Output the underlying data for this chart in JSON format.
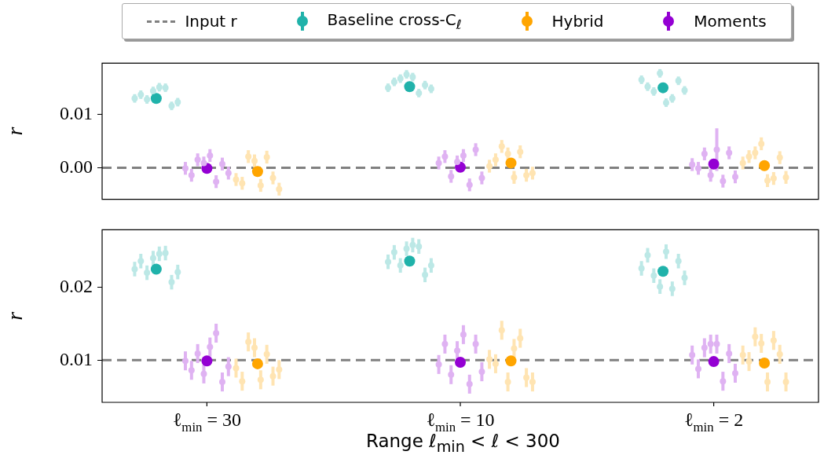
{
  "chart_data": [
    {
      "type": "scatter",
      "ylabel": "r",
      "legend": "top",
      "marker": "circle",
      "categories": [
        null,
        null,
        null
      ],
      "ylim": [
        -0.0059,
        0.0196
      ],
      "yticks": [
        {
          "value": 0,
          "label": "0.00"
        },
        {
          "value": 0.01,
          "label": "0.01"
        }
      ],
      "ref_lines": [
        {
          "axis": "y",
          "value": 0,
          "label": "Input r",
          "color": "#808080",
          "line_style": "dashed"
        }
      ],
      "series": [
        {
          "color": "#bce8e6",
          "values": [
            0.013,
            0.015,
            0.0165
          ],
          "errors": [
            0.0008,
            0.0008,
            0.0008
          ]
        },
        {
          "color": "#bce8e6",
          "values": [
            0.0137,
            0.0161,
            0.0152
          ],
          "errors": [
            0.0008,
            0.0008,
            0.0008
          ]
        },
        {
          "color": "#bce8e6",
          "values": [
            0.0128,
            0.0167,
            0.0143
          ],
          "errors": [
            0.0008,
            0.0008,
            0.0008
          ]
        },
        {
          "color": "#bce8e6",
          "values": [
            0.0144,
            0.0175,
            0.0177
          ],
          "errors": [
            0.0008,
            0.0008,
            0.0008
          ]
        },
        {
          "color": "#bce8e6",
          "values": [
            0.0151,
            0.017,
            0.0122
          ],
          "errors": [
            0.0008,
            0.0008,
            0.0008
          ]
        },
        {
          "color": "#bce8e6",
          "values": [
            0.015,
            0.014,
            0.013
          ],
          "errors": [
            0.0008,
            0.0008,
            0.0008
          ]
        },
        {
          "color": "#bce8e6",
          "values": [
            0.0116,
            0.0155,
            0.0163
          ],
          "errors": [
            0.0008,
            0.0008,
            0.0008
          ]
        },
        {
          "color": "#bce8e6",
          "values": [
            0.0123,
            0.0148,
            0.0145
          ],
          "errors": [
            0.0008,
            0.0008,
            0.0008
          ]
        },
        {
          "color": "#ffe4b2",
          "values": [
            -0.0022,
            0.0003,
            0.0009
          ],
          "errors": [
            0.0012,
            0.0012,
            0.0012
          ]
        },
        {
          "color": "#ffe4b2",
          "values": [
            -0.0029,
            0.0015,
            0.0021
          ],
          "errors": [
            0.0012,
            0.0012,
            0.0012
          ]
        },
        {
          "color": "#ffe4b2",
          "values": [
            0.0021,
            0.004,
            0.0028
          ],
          "errors": [
            0.0012,
            0.0012,
            0.0012
          ]
        },
        {
          "color": "#ffe4b2",
          "values": [
            0.0013,
            0.0026,
            0.0045
          ],
          "errors": [
            0.0012,
            0.0012,
            0.0012
          ]
        },
        {
          "color": "#ffe4b2",
          "values": [
            -0.0033,
            -0.0018,
            -0.0024
          ],
          "errors": [
            0.0012,
            0.0012,
            0.0012
          ]
        },
        {
          "color": "#ffe4b2",
          "values": [
            0.002,
            0.003,
            -0.002
          ],
          "errors": [
            0.0012,
            0.0012,
            0.0012
          ]
        },
        {
          "color": "#ffe4b2",
          "values": [
            -0.0019,
            -0.0014,
            0.0019
          ],
          "errors": [
            0.0012,
            0.0012,
            0.0012
          ]
        },
        {
          "color": "#ffe4b2",
          "values": [
            -0.004,
            -0.001,
            -0.0018
          ],
          "errors": [
            0.0012,
            0.0012,
            0.0012
          ]
        },
        {
          "color": "#dfb2f2",
          "values": [
            -0.0001,
            0.0009,
            0.0006
          ],
          "errors": [
            0.0012,
            0.0012,
            0.0012
          ]
        },
        {
          "color": "#dfb2f2",
          "values": [
            -0.0014,
            0.0021,
            -0.0001
          ],
          "errors": [
            0.0012,
            0.0012,
            0.0012
          ]
        },
        {
          "color": "#dfb2f2",
          "values": [
            0.0015,
            -0.0016,
            0.0026
          ],
          "errors": [
            0.0012,
            0.0012,
            0.0012
          ]
        },
        {
          "color": "#dfb2f2",
          "values": [
            0.0009,
            0.0011,
            -0.0014
          ],
          "errors": [
            0.0012,
            0.0012,
            0.0012
          ]
        },
        {
          "color": "#dfb2f2",
          "values": [
            0.0023,
            0.0023,
            0.0034
          ],
          "errors": [
            0.0012,
            0.0012,
            0.004
          ]
        },
        {
          "color": "#dfb2f2",
          "values": [
            -0.0026,
            -0.0032,
            -0.0025
          ],
          "errors": [
            0.0012,
            0.0012,
            0.0012
          ]
        },
        {
          "color": "#dfb2f2",
          "values": [
            0.0007,
            0.0034,
            0.0028
          ],
          "errors": [
            0.0012,
            0.0012,
            0.0012
          ]
        },
        {
          "color": "#dfb2f2",
          "values": [
            -0.001,
            -0.0019,
            -0.0017
          ],
          "errors": [
            0.0012,
            0.0012,
            0.0012
          ]
        },
        {
          "name": "Baseline cross-C$_{ℓ}$",
          "color": "#20b2aa",
          "values": [
            0.013,
            0.0152,
            0.015
          ],
          "errors": [
            0.0007,
            0.0007,
            0.0007
          ]
        },
        {
          "name": "Hybrid",
          "color": "#ffa500",
          "values": [
            -0.0007,
            0.0009,
            0.0004
          ],
          "errors": [
            0.0004,
            0.0004,
            0.0004
          ]
        },
        {
          "name": "Moments",
          "color": "#9400d3",
          "values": [
            -0.0001,
            0.0001,
            0.0007
          ],
          "errors": [
            0.0005,
            0.0005,
            0.0005
          ]
        }
      ]
    },
    {
      "type": "scatter",
      "ylabel": "r",
      "xlabel": "Range ℓ$_{min}$ < ℓ < 300",
      "marker": "circle",
      "categories": [
        "ℓ$_{min}$ = 30",
        "ℓ$_{min}$ = 10",
        "ℓ$_{min}$ = 2"
      ],
      "ylim": [
        0.0042,
        0.0279
      ],
      "yticks": [
        {
          "value": 0.01,
          "label": "0.01"
        },
        {
          "value": 0.02,
          "label": "0.02"
        }
      ],
      "ref_lines": [
        {
          "axis": "y",
          "value": 0.01,
          "color": "#808080",
          "line_style": "dashed"
        }
      ],
      "series": [
        {
          "color": "#bce8e6",
          "values": [
            0.0225,
            0.0235,
            0.0226
          ],
          "errors": [
            0.001,
            0.001,
            0.001
          ]
        },
        {
          "color": "#bce8e6",
          "values": [
            0.0236,
            0.0248,
            0.0244
          ],
          "errors": [
            0.001,
            0.001,
            0.001
          ]
        },
        {
          "color": "#bce8e6",
          "values": [
            0.022,
            0.023,
            0.0216
          ],
          "errors": [
            0.001,
            0.001,
            0.001
          ]
        },
        {
          "color": "#bce8e6",
          "values": [
            0.024,
            0.0253,
            0.0201
          ],
          "errors": [
            0.001,
            0.001,
            0.001
          ]
        },
        {
          "color": "#bce8e6",
          "values": [
            0.0246,
            0.0258,
            0.0249
          ],
          "errors": [
            0.001,
            0.001,
            0.001
          ]
        },
        {
          "color": "#bce8e6",
          "values": [
            0.0247,
            0.0256,
            0.0198
          ],
          "errors": [
            0.001,
            0.001,
            0.001
          ]
        },
        {
          "color": "#bce8e6",
          "values": [
            0.0207,
            0.0217,
            0.0236
          ],
          "errors": [
            0.001,
            0.001,
            0.001
          ]
        },
        {
          "color": "#bce8e6",
          "values": [
            0.0221,
            0.023,
            0.0213
          ],
          "errors": [
            0.001,
            0.001,
            0.001
          ]
        },
        {
          "color": "#ffe4b2",
          "values": [
            0.0089,
            0.0101,
            0.0107
          ],
          "errors": [
            0.0013,
            0.0013,
            0.0013
          ]
        },
        {
          "color": "#ffe4b2",
          "values": [
            0.0071,
            0.0095,
            0.0098
          ],
          "errors": [
            0.0013,
            0.0013,
            0.0013
          ]
        },
        {
          "color": "#ffe4b2",
          "values": [
            0.0125,
            0.0141,
            0.0132
          ],
          "errors": [
            0.0013,
            0.0013,
            0.0013
          ]
        },
        {
          "color": "#ffe4b2",
          "values": [
            0.0117,
            0.007,
            0.0123
          ],
          "errors": [
            0.0013,
            0.0013,
            0.0013
          ]
        },
        {
          "color": "#ffe4b2",
          "values": [
            0.0073,
            0.0116,
            0.007
          ],
          "errors": [
            0.0013,
            0.0013,
            0.0013
          ]
        },
        {
          "color": "#ffe4b2",
          "values": [
            0.0108,
            0.013,
            0.0127
          ],
          "errors": [
            0.0013,
            0.0013,
            0.0013
          ]
        },
        {
          "color": "#ffe4b2",
          "values": [
            0.0078,
            0.0076,
            0.0108
          ],
          "errors": [
            0.0013,
            0.0013,
            0.0013
          ]
        },
        {
          "color": "#ffe4b2",
          "values": [
            0.0087,
            0.007,
            0.007
          ],
          "errors": [
            0.0013,
            0.0013,
            0.0013
          ]
        },
        {
          "color": "#dfb2f2",
          "values": [
            0.0099,
            0.0094,
            0.0107
          ],
          "errors": [
            0.0013,
            0.0013,
            0.0013
          ]
        },
        {
          "color": "#dfb2f2",
          "values": [
            0.0086,
            0.0122,
            0.0088
          ],
          "errors": [
            0.0013,
            0.0013,
            0.0013
          ]
        },
        {
          "color": "#dfb2f2",
          "values": [
            0.0109,
            0.008,
            0.0117
          ],
          "errors": [
            0.0013,
            0.0013,
            0.0013
          ]
        },
        {
          "color": "#dfb2f2",
          "values": [
            0.0081,
            0.0113,
            0.0122
          ],
          "errors": [
            0.0013,
            0.0013,
            0.0013
          ]
        },
        {
          "color": "#dfb2f2",
          "values": [
            0.0118,
            0.0135,
            0.0122
          ],
          "errors": [
            0.0013,
            0.0013,
            0.0013
          ]
        },
        {
          "color": "#dfb2f2",
          "values": [
            0.0137,
            0.0067,
            0.0071
          ],
          "errors": [
            0.0013,
            0.0013,
            0.0013
          ]
        },
        {
          "color": "#dfb2f2",
          "values": [
            0.007,
            0.0122,
            0.0109
          ],
          "errors": [
            0.0013,
            0.0013,
            0.0013
          ]
        },
        {
          "color": "#dfb2f2",
          "values": [
            0.0091,
            0.0084,
            0.0082
          ],
          "errors": [
            0.0013,
            0.0013,
            0.0013
          ]
        },
        {
          "color": "#20b2aa",
          "values": [
            0.0225,
            0.0236,
            0.0222
          ],
          "errors": [
            0.0005,
            0.0005,
            0.0005
          ]
        },
        {
          "color": "#ffa500",
          "values": [
            0.0095,
            0.0099,
            0.0096
          ],
          "errors": [
            0.0005,
            0.0005,
            0.0005
          ]
        },
        {
          "color": "#9400d3",
          "values": [
            0.0099,
            0.0097,
            0.0098
          ],
          "errors": [
            0.0005,
            0.0005,
            0.0005
          ]
        }
      ]
    }
  ]
}
